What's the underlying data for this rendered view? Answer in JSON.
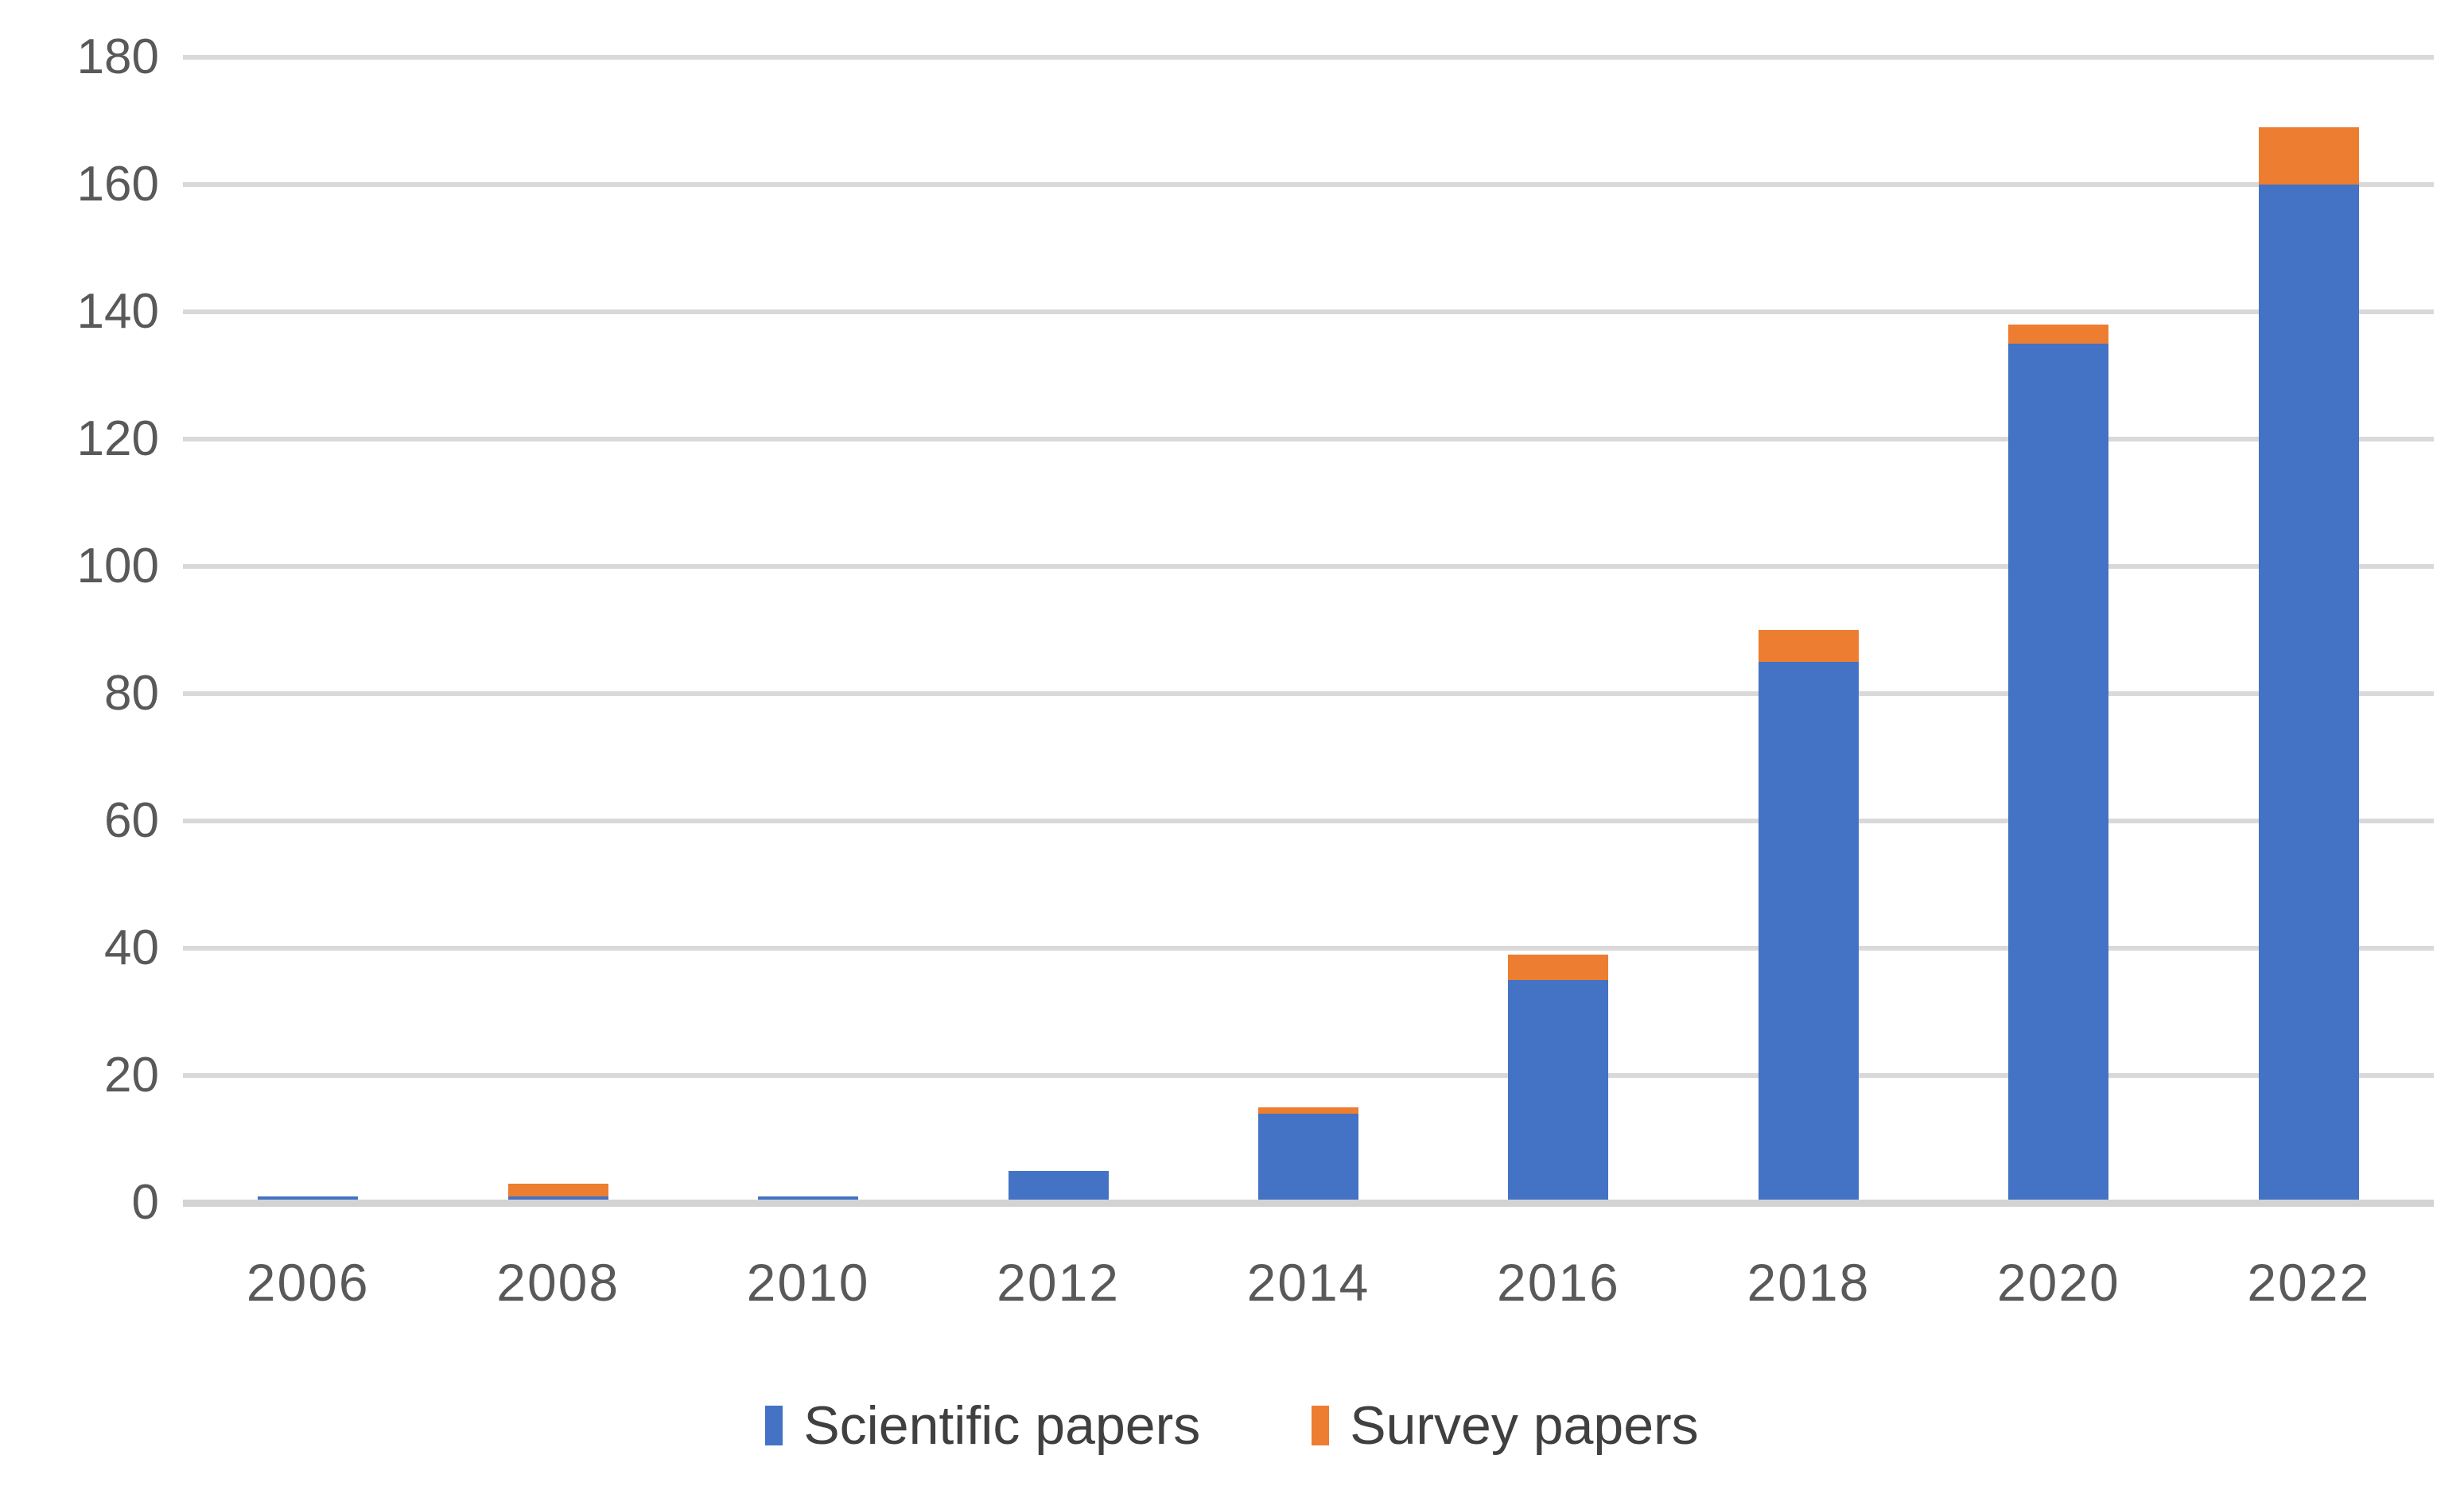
{
  "chart_data": {
    "type": "bar",
    "stacked": true,
    "title": "",
    "xlabel": "",
    "ylabel": "",
    "categories": [
      "2006",
      "2008",
      "2010",
      "2012",
      "2014",
      "2016",
      "2018",
      "2020",
      "2022"
    ],
    "series": [
      {
        "name": "Scientific papers",
        "color": "#4472C4",
        "values": [
          1,
          1,
          1,
          5,
          14,
          35,
          85,
          135,
          160
        ]
      },
      {
        "name": "Survey papers",
        "color": "#ED7D31",
        "values": [
          0,
          2,
          0,
          0,
          1,
          4,
          5,
          3,
          9
        ]
      }
    ],
    "totals": [
      1,
      3,
      1,
      5,
      15,
      39,
      90,
      138,
      169
    ],
    "ylim": [
      0,
      180
    ],
    "ytick_step": 20,
    "yticks": [
      0,
      20,
      40,
      60,
      80,
      100,
      120,
      140,
      160,
      180
    ],
    "grid": true,
    "legend_position": "bottom",
    "colors": {
      "gridline": "#D9D9D9",
      "axis_line": "#D3D3D3",
      "tick_label": "#595959",
      "legend_text": "#404040",
      "background": "#FFFFFF"
    }
  }
}
